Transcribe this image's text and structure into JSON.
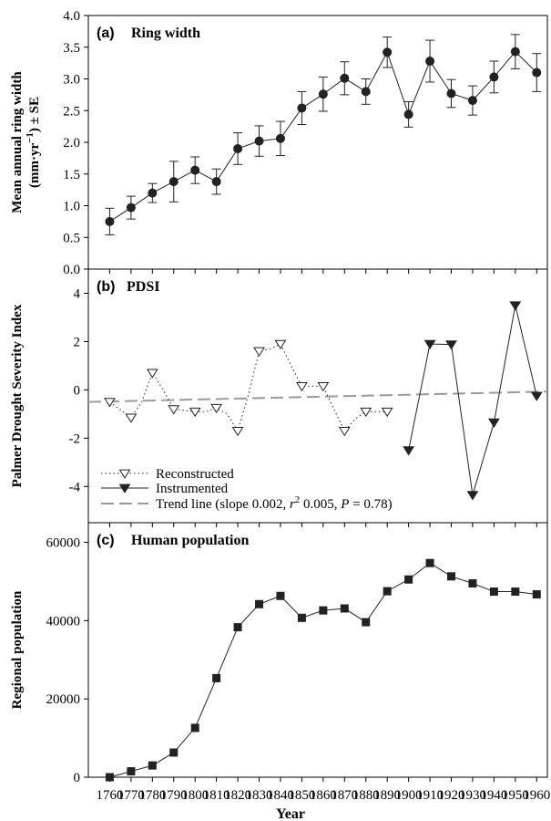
{
  "chart_data": [
    {
      "type": "line",
      "panel_label": "(a)",
      "title": "Ring width",
      "ylabel_line1": "Mean annual ring width",
      "ylabel_line2_pre": "(mm·yr",
      "ylabel_line2_sup": "−1",
      "ylabel_line2_post": ") ± SE",
      "ylim": [
        0,
        4
      ],
      "yticks": [
        "0.0",
        "0.5",
        "1.0",
        "1.5",
        "2.0",
        "2.5",
        "3.0",
        "3.5",
        "4.0"
      ],
      "x": [
        1760,
        1770,
        1780,
        1790,
        1800,
        1810,
        1820,
        1830,
        1840,
        1850,
        1860,
        1870,
        1880,
        1890,
        1900,
        1910,
        1920,
        1930,
        1940,
        1950,
        1960
      ],
      "values": [
        0.75,
        0.97,
        1.2,
        1.38,
        1.56,
        1.38,
        1.9,
        2.02,
        2.06,
        2.54,
        2.76,
        3.01,
        2.8,
        3.42,
        2.44,
        3.28,
        2.77,
        2.66,
        3.03,
        3.43,
        3.1
      ],
      "se": [
        0.21,
        0.18,
        0.15,
        0.32,
        0.21,
        0.2,
        0.25,
        0.24,
        0.27,
        0.26,
        0.27,
        0.26,
        0.2,
        0.24,
        0.2,
        0.33,
        0.22,
        0.23,
        0.25,
        0.27,
        0.3
      ],
      "grid": false
    },
    {
      "type": "line",
      "panel_label": "(b)",
      "title": "PDSI",
      "ylabel": "Palmer Drought Severity Index",
      "ylim": [
        -5.5,
        5
      ],
      "yticks": [
        "-4",
        "-2",
        "0",
        "2",
        "4"
      ],
      "series": [
        {
          "name": "Reconstructed",
          "x": [
            1760,
            1770,
            1775,
            1780,
            1785,
            1790,
            1795,
            1800,
            1805,
            1810,
            1815,
            1820,
            1825,
            1830,
            1835,
            1840,
            1845,
            1850,
            1855,
            1860,
            1865,
            1870,
            1875,
            1880,
            1885,
            1890
          ],
          "values": [
            -0.5,
            -1.15,
            -0.5,
            0.7,
            0.0,
            -0.8,
            -0.85,
            -0.9,
            -0.9,
            -0.75,
            -1.0,
            -1.7,
            -0.2,
            1.6,
            1.7,
            1.9,
            1.0,
            0.15,
            0.15,
            0.15,
            -0.8,
            -1.7,
            -1.2,
            -0.9,
            -0.9,
            -0.9
          ],
          "style": "dotted, open triangle-down markers"
        },
        {
          "name": "Instrumented",
          "x": [
            1900,
            1910,
            1920,
            1930,
            1940,
            1950,
            1960
          ],
          "values": [
            -2.5,
            1.9,
            1.88,
            -4.35,
            -1.35,
            3.5,
            -0.25
          ],
          "style": "solid, filled triangle-down markers"
        },
        {
          "name_pre": "Trend line (slope 0.002, ",
          "name_r": "r",
          "name_sup": "2",
          "name_mid": " 0.005, ",
          "name_p": "P",
          "name_post": " = 0.78)",
          "x": [
            1750,
            1965
          ],
          "values": [
            -0.5,
            -0.07
          ],
          "style": "dashed grey"
        }
      ],
      "legend_placement": "bottom-left",
      "grid": false
    },
    {
      "type": "line",
      "panel_label": "(c)",
      "title": "Human population",
      "ylabel": "Regional population",
      "xlabel": "Year",
      "ylim": [
        0,
        65000
      ],
      "yticks": [
        "0",
        "20000",
        "40000",
        "60000"
      ],
      "x": [
        1760,
        1770,
        1780,
        1790,
        1800,
        1810,
        1820,
        1830,
        1840,
        1850,
        1860,
        1870,
        1880,
        1890,
        1900,
        1910,
        1920,
        1930,
        1940,
        1950,
        1960
      ],
      "values": [
        0,
        1500,
        3000,
        6300,
        12600,
        25300,
        38300,
        44200,
        46300,
        40700,
        42600,
        43100,
        39600,
        47500,
        50500,
        54700,
        51300,
        49500,
        47400,
        47400,
        46700
      ],
      "xticks": [
        "1760",
        "1770",
        "1780",
        "1790",
        "1800",
        "1810",
        "1820",
        "1830",
        "1840",
        "1850",
        "1860",
        "1870",
        "1880",
        "1890",
        "1900",
        "1910",
        "1920",
        "1930",
        "1940",
        "1950",
        "1960"
      ],
      "grid": false
    }
  ]
}
